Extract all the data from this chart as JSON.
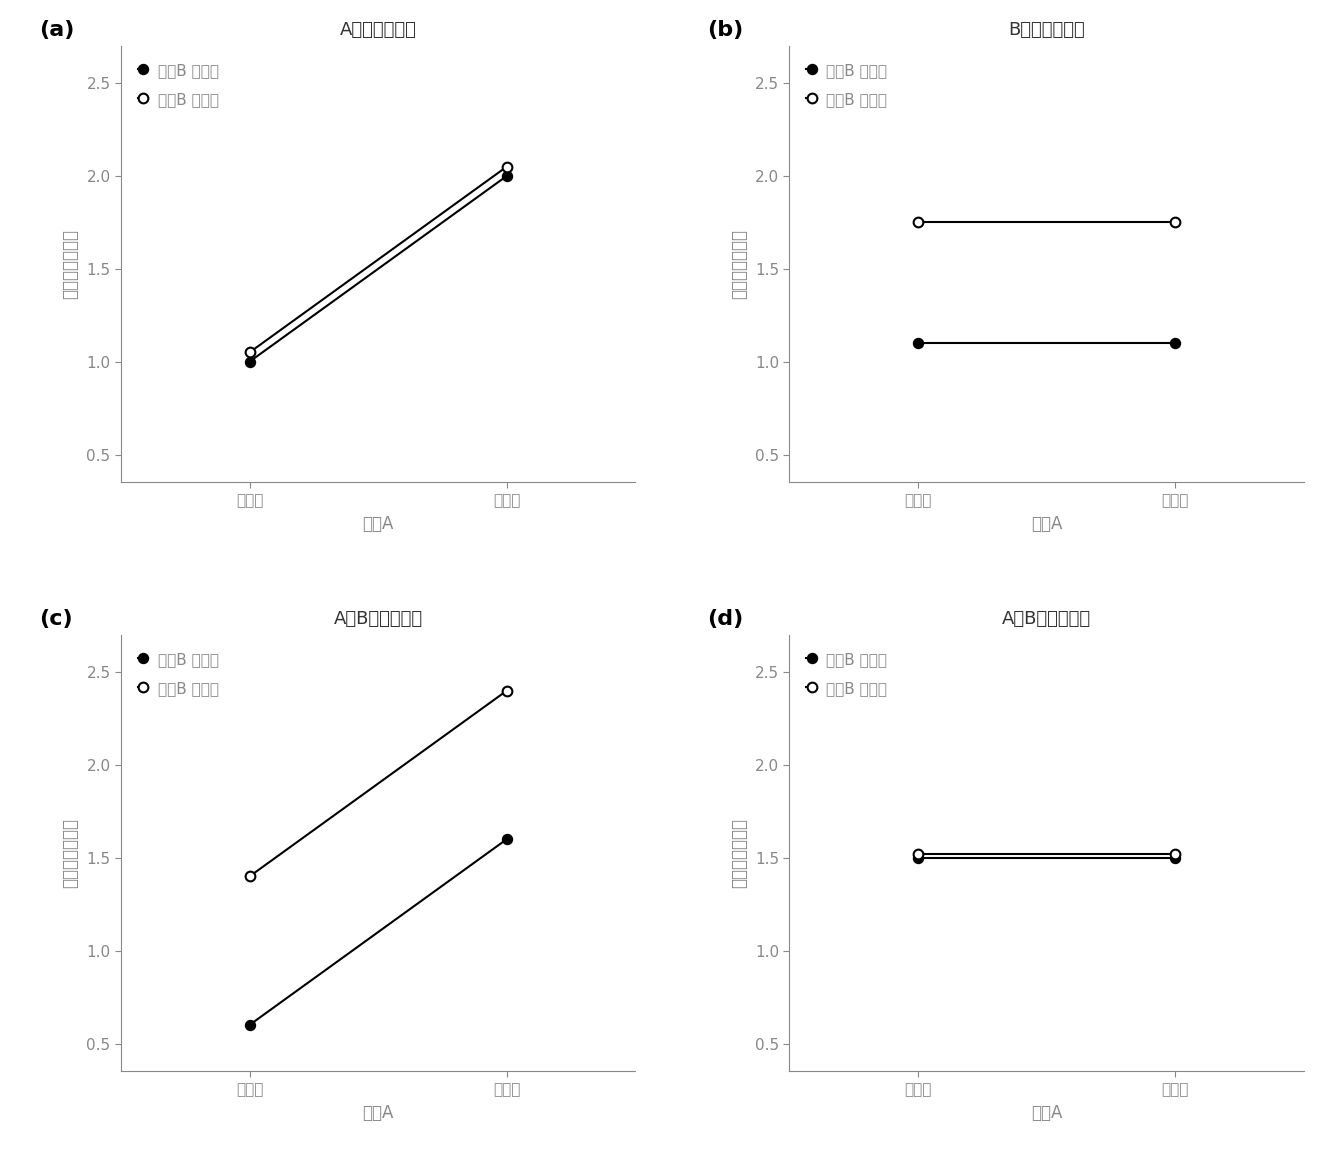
{
  "panels": [
    {
      "label": "(a)",
      "title": "Aのみ効果あり",
      "b1": [
        1.0,
        2.0
      ],
      "b2": [
        1.05,
        2.05
      ]
    },
    {
      "label": "(b)",
      "title": "Bのみ効果あり",
      "b1": [
        1.1,
        1.1
      ],
      "b2": [
        1.75,
        1.75
      ]
    },
    {
      "label": "(c)",
      "title": "AもBも効果あり",
      "b1": [
        0.6,
        1.6
      ],
      "b2": [
        1.4,
        2.4
      ]
    },
    {
      "label": "(d)",
      "title": "AもBも効果なし",
      "b1": [
        1.5,
        1.5
      ],
      "b2": [
        1.52,
        1.52
      ]
    }
  ],
  "x_ticks": [
    "水渱１",
    "水渱２"
  ],
  "xlabel": "要因A",
  "ylabel": "グループ平均値",
  "legend_b1": "要因B 水渱１",
  "legend_b2": "要因B 水渱２",
  "ylim": [
    0.35,
    2.7
  ],
  "yticks": [
    0.5,
    1.0,
    1.5,
    2.0,
    2.5
  ],
  "bg_color": "#ffffff",
  "line_color": "#000000",
  "axis_color": "#888888",
  "label_color": "#888888",
  "title_color": "#333333"
}
